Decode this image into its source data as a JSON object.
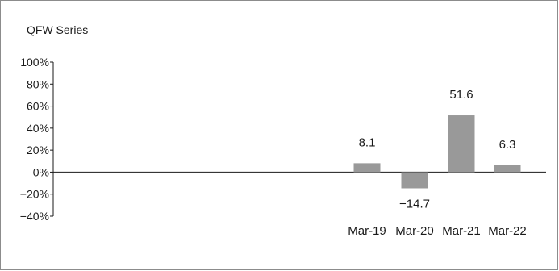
{
  "chart_data": {
    "type": "bar",
    "title": "QFW Series",
    "categories": [
      "Mar-19",
      "Mar-20",
      "Mar-21",
      "Mar-22"
    ],
    "values": [
      8.1,
      -14.7,
      51.6,
      6.3
    ],
    "data_labels": [
      "8.1",
      "−14.7",
      "51.6",
      "6.3"
    ],
    "ylim": [
      -40,
      100
    ],
    "yticks": [
      100,
      80,
      60,
      40,
      20,
      0,
      -20,
      -40
    ],
    "ytick_labels": [
      "100%",
      "80%",
      "60%",
      "40%",
      "20%",
      "0%",
      "−20%",
      "−40%"
    ],
    "xlabel": "",
    "ylabel": "",
    "grid": false,
    "legend": "none",
    "bar_color": "#999999"
  }
}
